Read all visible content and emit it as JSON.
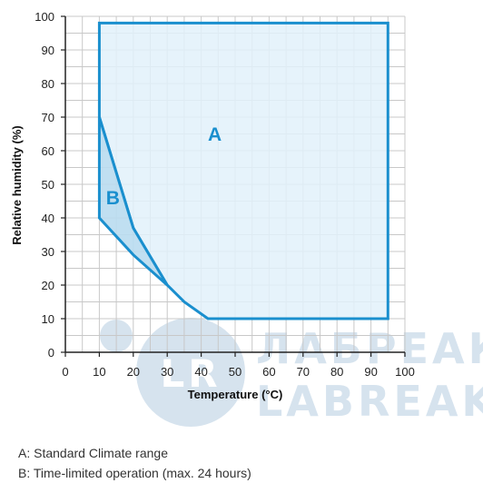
{
  "chart_data": {
    "type": "area",
    "xlabel": "Temperature (°C)",
    "ylabel": "Relative humidity (%)",
    "xlim": [
      0,
      100
    ],
    "ylim": [
      0,
      100
    ],
    "x_ticks": [
      "0",
      "10",
      "20",
      "30",
      "40",
      "50",
      "60",
      "70",
      "80",
      "90",
      "100"
    ],
    "y_ticks": [
      "0",
      "10",
      "20",
      "30",
      "40",
      "50",
      "60",
      "70",
      "80",
      "90",
      "100"
    ],
    "grid": true,
    "regions": [
      {
        "label": "A",
        "points": [
          [
            10,
            98
          ],
          [
            95,
            98
          ],
          [
            95,
            10
          ],
          [
            42,
            10
          ],
          [
            35,
            15
          ],
          [
            30,
            20
          ],
          [
            20,
            37
          ],
          [
            10,
            70
          ]
        ]
      },
      {
        "label": "B",
        "points": [
          [
            10,
            70
          ],
          [
            20,
            37
          ],
          [
            30,
            20
          ],
          [
            20,
            29
          ],
          [
            10,
            40
          ]
        ]
      }
    ],
    "region_label_positions": [
      [
        44,
        63
      ],
      [
        14,
        44
      ]
    ]
  },
  "legend": {
    "line_a": "A: Standard Climate range",
    "line_b": "B: Time-limited operation (max. 24 hours)"
  },
  "watermark": {
    "line1": "ЛАБРЕАКТИВ",
    "line2": "LABREAKTIV",
    "logo_text": "LR"
  },
  "colors": {
    "line": "#1a8fce",
    "fill_a": "#e2f1fa",
    "fill_b": "#b9dcf0",
    "grid": "#c8c8c8",
    "watermark": "#d6e3ee"
  }
}
